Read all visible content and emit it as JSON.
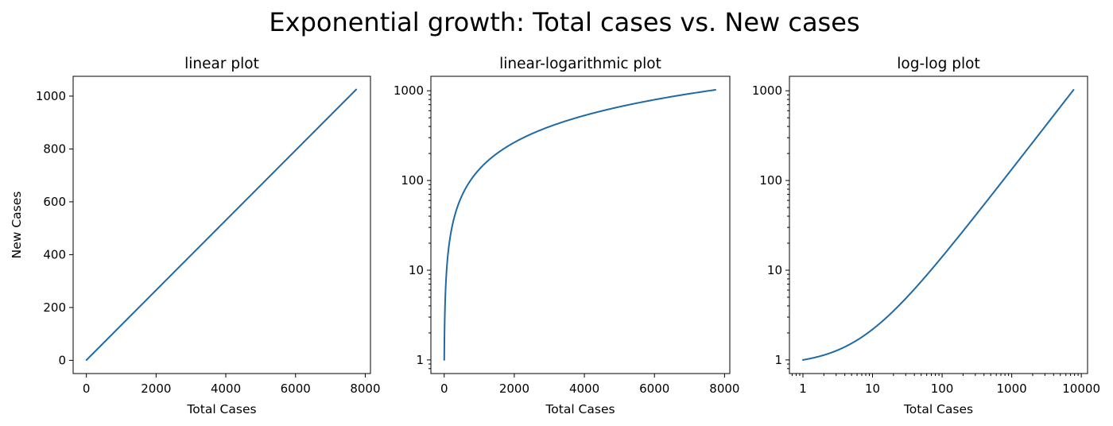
{
  "figure": {
    "title": "Exponential growth: Total cases vs. New cases",
    "line_color": "#1f6aa5"
  },
  "chart_data": [
    {
      "type": "line",
      "title": "linear plot",
      "xlabel": "Total Cases",
      "ylabel": "New Cases",
      "xscale": "linear",
      "yscale": "linear",
      "xlim": [
        -380,
        8150
      ],
      "ylim": [
        -50,
        1075
      ],
      "xticks": [
        0,
        2000,
        4000,
        6000,
        8000
      ],
      "xtick_labels": [
        "0",
        "2000",
        "4000",
        "6000",
        "8000"
      ],
      "yticks": [
        0,
        200,
        400,
        600,
        800,
        1000
      ],
      "ytick_labels": [
        "0",
        "200",
        "400",
        "600",
        "800",
        "1000"
      ],
      "x": [
        1,
        7740
      ],
      "y": [
        1,
        1025
      ]
    },
    {
      "type": "line",
      "title": "linear-logarithmic plot",
      "xlabel": "Total Cases",
      "ylabel": "",
      "xscale": "linear",
      "yscale": "log",
      "xlim": [
        -380,
        8150
      ],
      "ylim": [
        0.705,
        1450
      ],
      "xticks": [
        0,
        2000,
        4000,
        6000,
        8000
      ],
      "xtick_labels": [
        "0",
        "2000",
        "4000",
        "6000",
        "8000"
      ],
      "yticks": [
        1,
        10,
        100,
        1000
      ],
      "ytick_labels": [
        "1",
        "10",
        "100",
        "1000"
      ],
      "x": [
        1,
        7740
      ],
      "y": [
        1,
        1025
      ]
    },
    {
      "type": "line",
      "title": "log-log plot",
      "xlabel": "Total Cases",
      "ylabel": "",
      "xscale": "log",
      "yscale": "log",
      "xlim": [
        0.64,
        12300
      ],
      "ylim": [
        0.705,
        1450
      ],
      "xticks": [
        1,
        10,
        100,
        1000,
        10000
      ],
      "xtick_labels": [
        "1",
        "10",
        "100",
        "1000",
        "10000"
      ],
      "yticks": [
        1,
        10,
        100,
        1000
      ],
      "ytick_labels": [
        "1",
        "10",
        "100",
        "1000"
      ],
      "x": [
        1,
        7740
      ],
      "y": [
        1,
        1025
      ]
    }
  ]
}
